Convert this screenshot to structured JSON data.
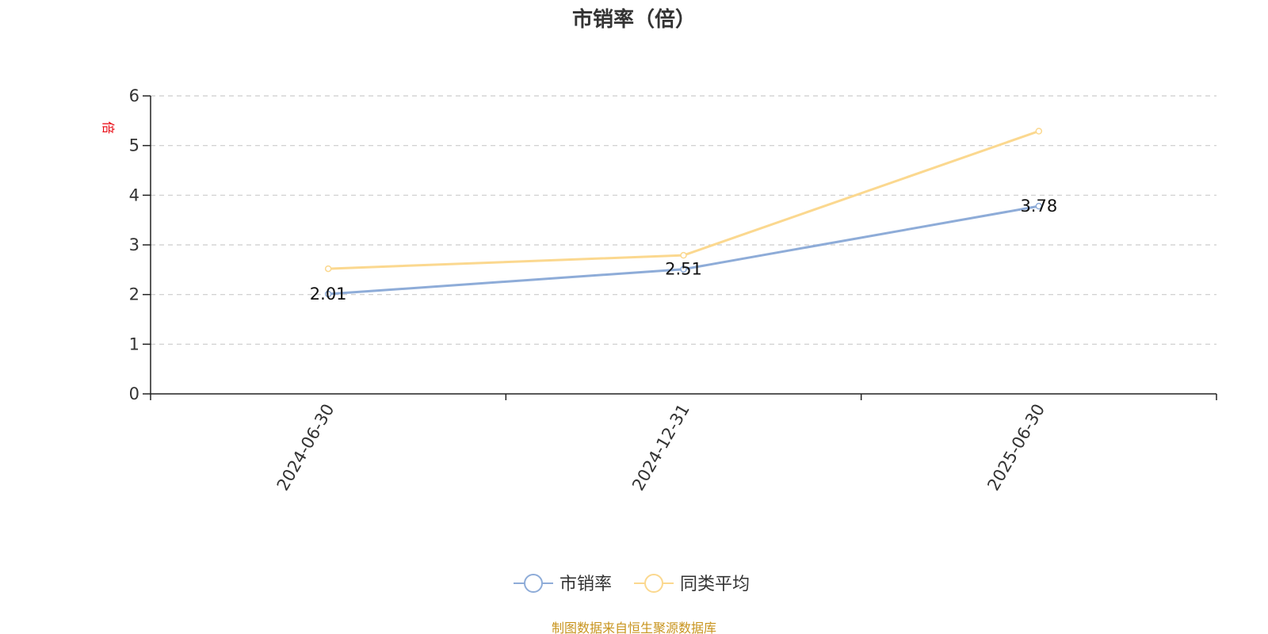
{
  "chart_data": {
    "type": "line",
    "title": "市销率（倍）",
    "ylabel": "倍",
    "categories": [
      "2024-06-30",
      "2024-12-31",
      "2025-06-30"
    ],
    "ylim": [
      0,
      6
    ],
    "yticks": [
      0,
      1,
      2,
      3,
      4,
      5,
      6
    ],
    "grid": true,
    "legend_position": "bottom-center",
    "series": [
      {
        "name": "市销率",
        "color": "#8eacd8",
        "values": [
          2.01,
          2.51,
          3.78
        ],
        "data_labels": [
          "2.01",
          "2.51",
          "3.78"
        ]
      },
      {
        "name": "同类平均",
        "color": "#fbd88f",
        "values": [
          2.52,
          2.79,
          5.29
        ]
      }
    ]
  },
  "source_note": "制图数据来自恒生聚源数据库"
}
